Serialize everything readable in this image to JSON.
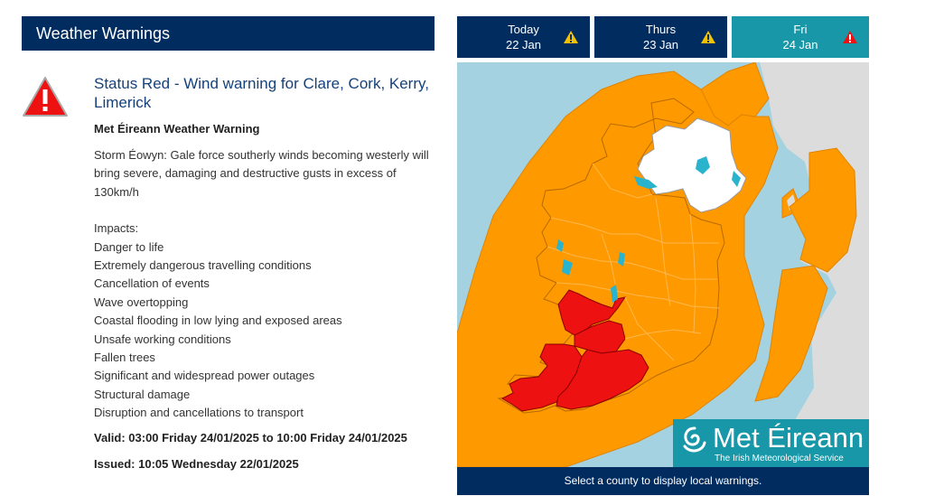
{
  "header": {
    "title": "Weather Warnings"
  },
  "warning": {
    "title": "Status Red - Wind warning for Clare, Cork, Kerry, Limerick",
    "source": "Met Éireann Weather Warning",
    "description": "Storm Éowyn: Gale force southerly winds becoming westerly will bring severe, damaging and destructive gusts in excess of 130km/h",
    "impacts_heading": "Impacts:",
    "impacts": [
      "Danger to life",
      "Extremely dangerous travelling conditions",
      "Cancellation of events",
      "Wave overtopping",
      "Coastal flooding in low lying and exposed areas",
      "Unsafe working conditions",
      "Fallen trees",
      "Significant and widespread power outages",
      "Structural damage",
      "Disruption and cancellations to transport"
    ],
    "valid": "Valid: 03:00 Friday 24/01/2025 to 10:00 Friday 24/01/2025",
    "issued": "Issued: 10:05 Wednesday 22/01/2025"
  },
  "days": [
    {
      "day": "Today",
      "date": "22 Jan",
      "level_icon": "warning-yellow-icon"
    },
    {
      "day": "Thurs",
      "date": "23 Jan",
      "level_icon": "warning-yellow-icon"
    },
    {
      "day": "Fri",
      "date": "24 Jan",
      "level_icon": "warning-red-icon"
    }
  ],
  "map": {
    "red_counties": [
      "Clare",
      "Cork",
      "Kerry",
      "Limerick"
    ],
    "footer_text": "Select a county to display local warnings."
  },
  "logo": {
    "name": "Met Éireann",
    "tagline": "The Irish Meteorological Service"
  },
  "colors": {
    "navy": "#002c5f",
    "teal": "#1797a8",
    "sea": "#a4d2e0",
    "orange": "#ff9900",
    "red": "#ee1111",
    "yellow": "#f2c200",
    "neighbour_land": "#dcdcdc"
  }
}
